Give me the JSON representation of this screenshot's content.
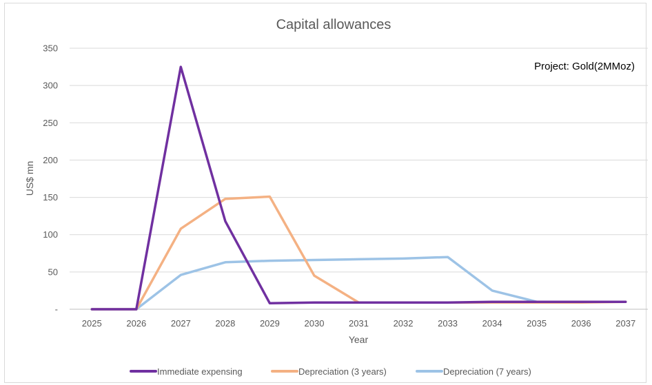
{
  "chart_data": {
    "type": "line",
    "title": "Capital allowances",
    "xlabel": "Year",
    "ylabel": "US$ mn",
    "annotation": "Project: Gold(2MMoz)",
    "categories": [
      "2025",
      "2026",
      "2027",
      "2028",
      "2029",
      "2030",
      "2031",
      "2032",
      "2033",
      "2034",
      "2035",
      "2036",
      "2037"
    ],
    "ylim": [
      0,
      350
    ],
    "yticks": [
      0,
      50,
      100,
      150,
      200,
      250,
      300,
      350
    ],
    "ytick_labels": [
      "-",
      "50",
      "100",
      "150",
      "200",
      "250",
      "300",
      "350"
    ],
    "grid": true,
    "legend_position": "bottom",
    "series": [
      {
        "name": "Immediate expensing",
        "color": "#7030a0",
        "values": [
          0,
          0,
          325,
          118,
          8,
          9,
          9,
          9,
          9,
          10,
          10,
          10,
          10
        ]
      },
      {
        "name": "Depreciation (3 years)",
        "color": "#f4b183",
        "values": [
          0,
          0,
          108,
          148,
          151,
          45,
          9,
          9,
          9,
          9,
          9,
          9,
          10
        ]
      },
      {
        "name": "Depreciation (7 years)",
        "color": "#9dc3e6",
        "values": [
          0,
          0,
          46,
          63,
          65,
          66,
          67,
          68,
          70,
          25,
          10,
          10,
          10
        ]
      }
    ]
  }
}
